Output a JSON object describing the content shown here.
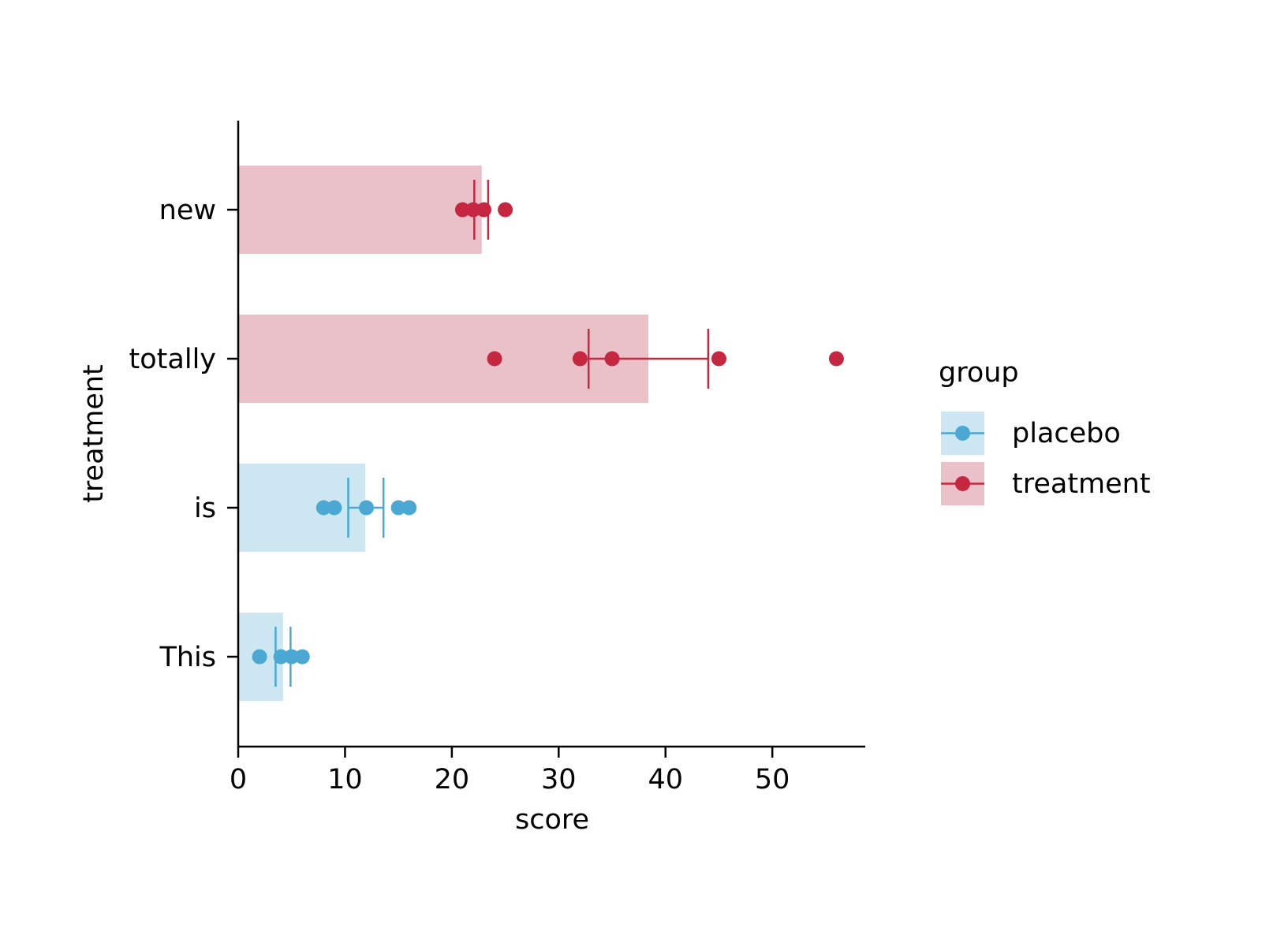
{
  "chart_data": {
    "type": "bar",
    "orientation": "horizontal",
    "xlabel": "score",
    "ylabel": "treatment",
    "xlim": [
      0,
      58.7
    ],
    "xticks": [
      0,
      10,
      20,
      30,
      40,
      50
    ],
    "grid": false,
    "legend": {
      "title": "group",
      "placement": "right",
      "entries": [
        {
          "label": "placebo",
          "color": "#4aa8d3",
          "fill": "#cce6f2"
        },
        {
          "label": "treatment",
          "color": "#c4273f",
          "fill": "#ebc1c9"
        }
      ]
    },
    "categories": [
      {
        "label": "new",
        "group": "treatment",
        "bar": 22.8,
        "error_bar": [
          22.1,
          23.4
        ],
        "points": [
          21.0,
          22.0,
          23.0,
          25.0
        ]
      },
      {
        "label": "totally",
        "group": "treatment",
        "bar": 38.4,
        "error_bar": [
          32.8,
          44.0
        ],
        "points": [
          24.0,
          32.0,
          35.0,
          45.0,
          56.0
        ]
      },
      {
        "label": "is",
        "group": "placebo",
        "bar": 11.9,
        "error_bar": [
          10.3,
          13.6
        ],
        "points": [
          8.0,
          9.0,
          12.0,
          15.0,
          16.0
        ]
      },
      {
        "label": "This",
        "group": "placebo",
        "bar": 4.2,
        "error_bar": [
          3.5,
          4.9
        ],
        "points": [
          2.0,
          4.0,
          5.0,
          6.0
        ]
      }
    ]
  }
}
